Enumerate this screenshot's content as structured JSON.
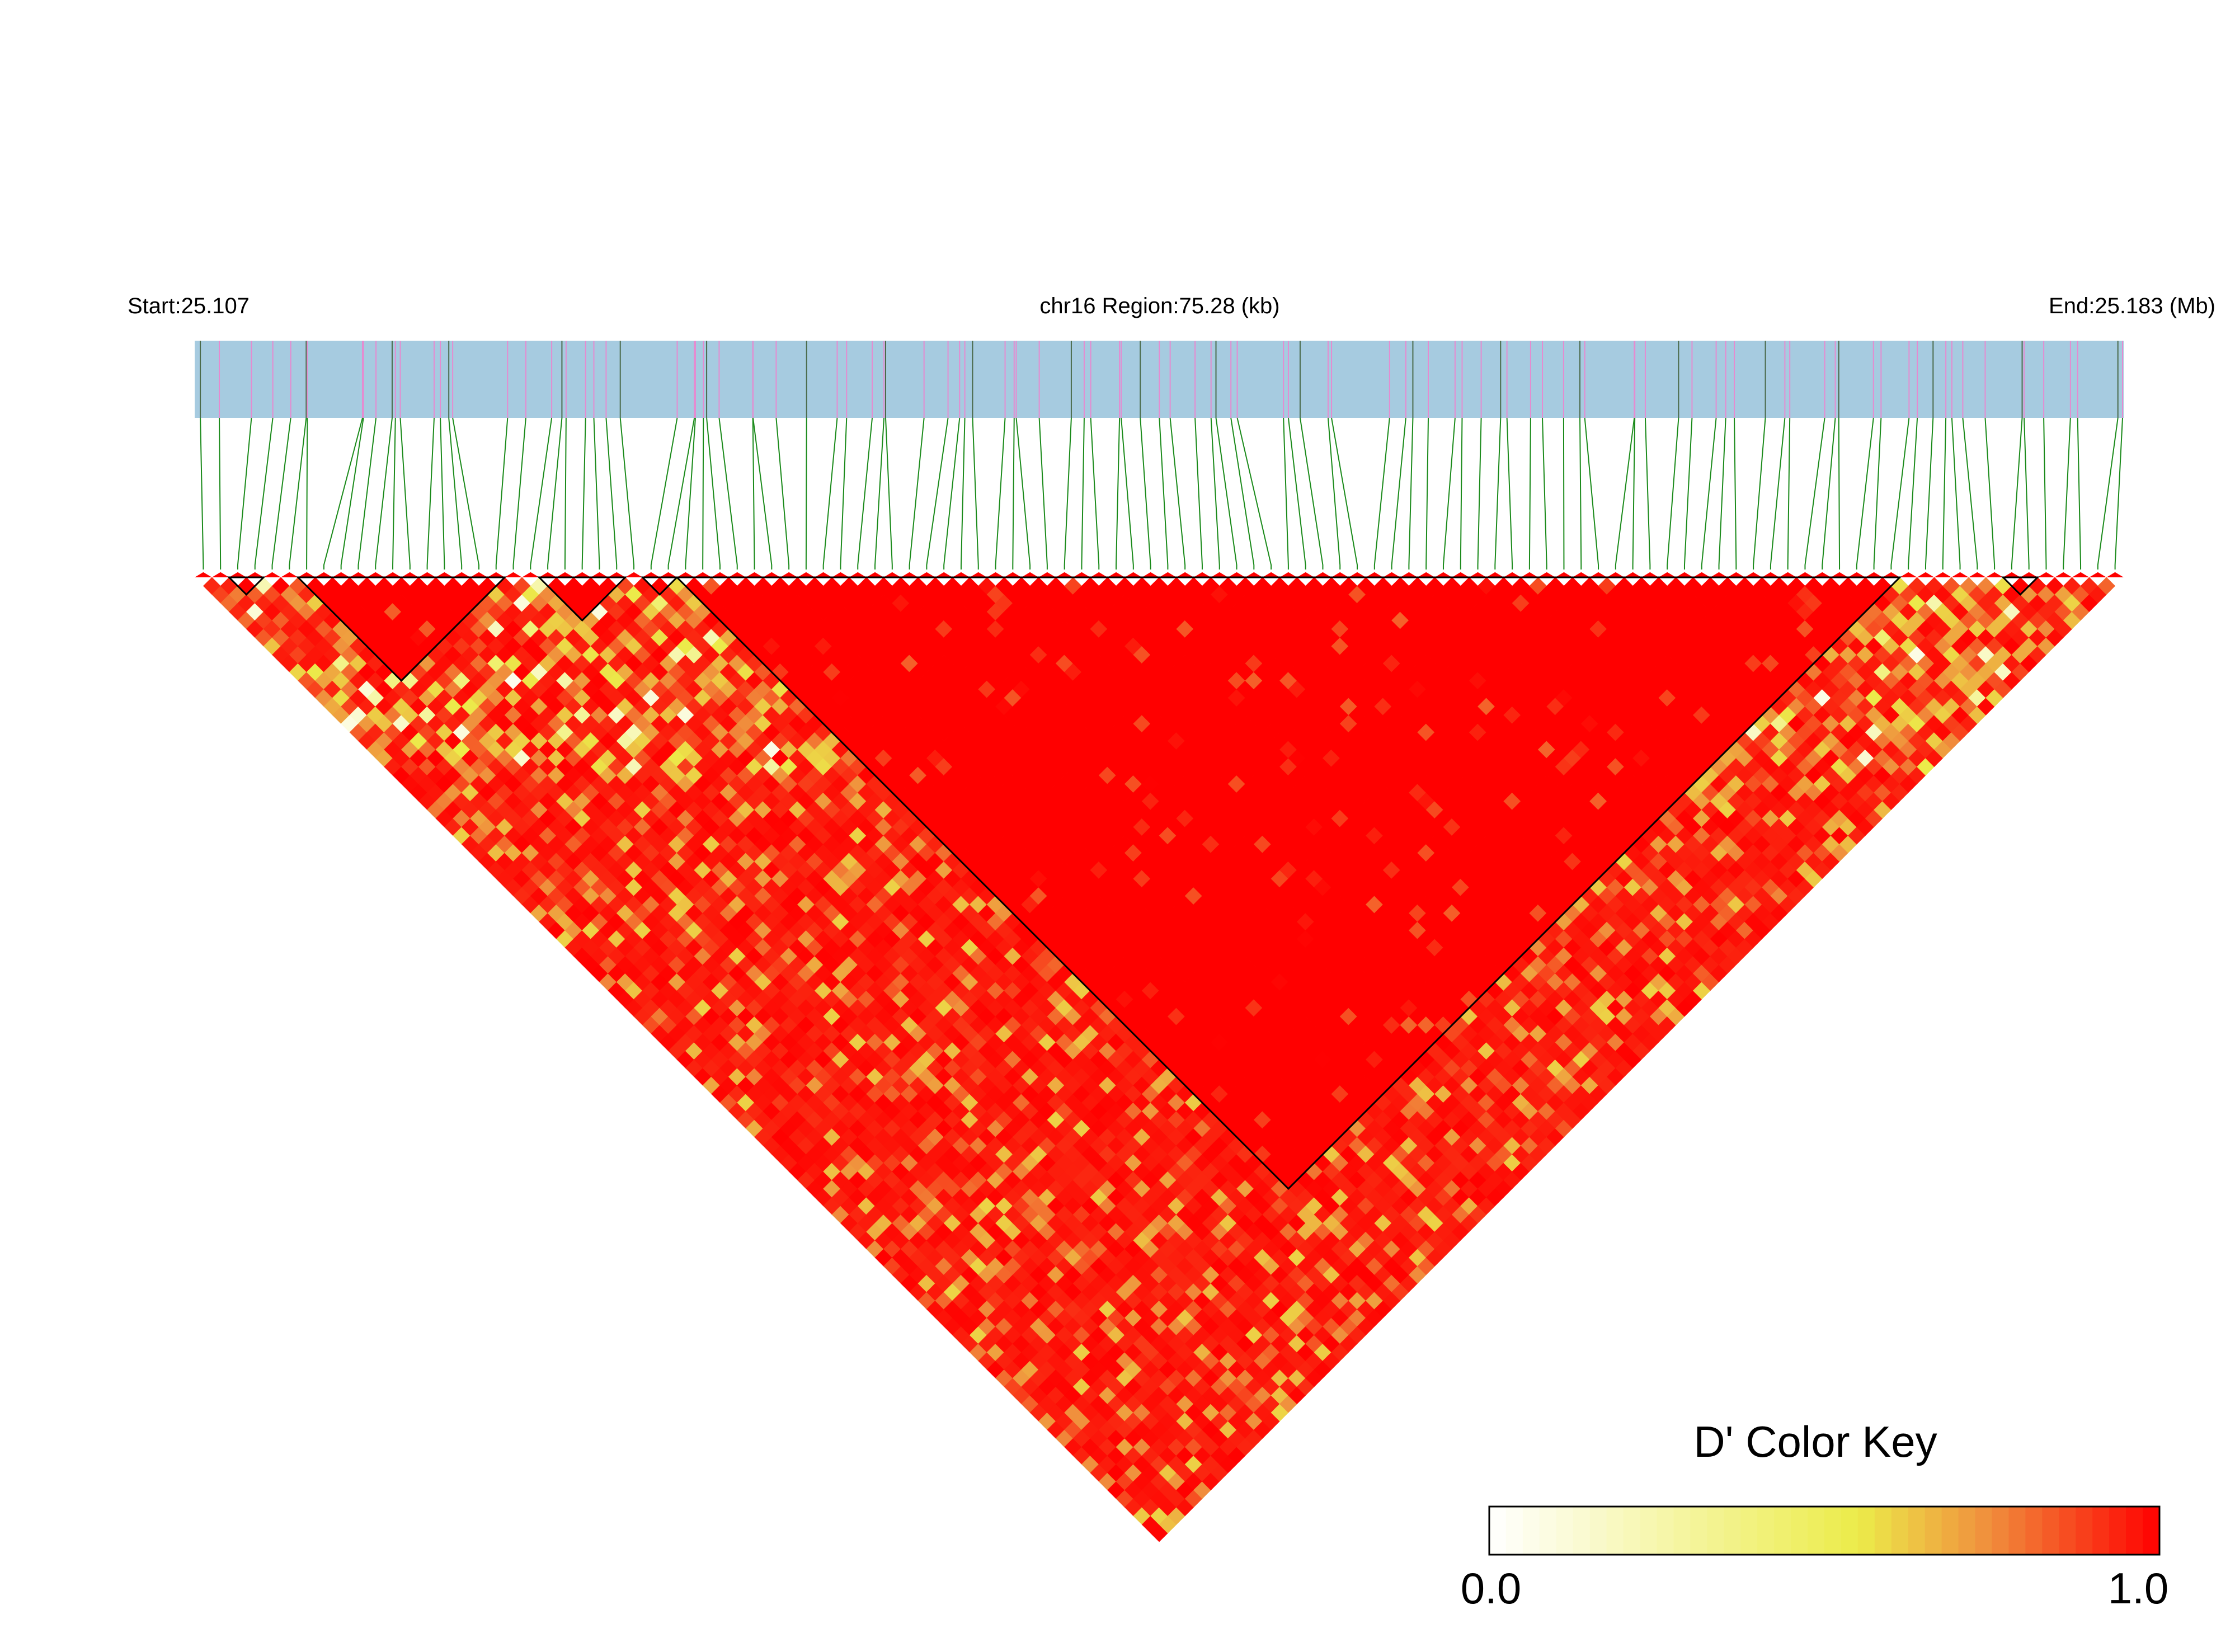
{
  "header": {
    "start_label": "Start:25.107",
    "region_label": "chr16 Region:75.28 (kb)",
    "end_label": "End:25.183 (Mb)"
  },
  "chart_data": {
    "type": "heatmap",
    "subtype": "LD block plot (triangular)",
    "chromosome": "chr16",
    "start_mb": 25.107,
    "end_mb": 25.183,
    "region_kb": 75.28,
    "n_snps": 112,
    "metric": "D'",
    "value_range": [
      0.0,
      1.0
    ],
    "blocks": [
      {
        "from_snp": 3,
        "to_snp": 4
      },
      {
        "from_snp": 7,
        "to_snp": 18
      },
      {
        "from_snp": 21,
        "to_snp": 25
      },
      {
        "from_snp": 27,
        "to_snp": 28
      },
      {
        "from_snp": 29,
        "to_snp": 99
      },
      {
        "from_snp": 106,
        "to_snp": 107
      }
    ],
    "legend": {
      "title": "D' Color Key",
      "min_label": "0.0",
      "max_label": "1.0",
      "placement": "bottom-right"
    },
    "colors": {
      "track_fill": "#a6cbe0",
      "marker_pink": "#e58bd0",
      "marker_dark": "#4a6a4a",
      "connector": "#1a8a1a",
      "low": "#ffffff",
      "mid": "#ecec4a",
      "high": "#ff0000",
      "block_outline": "#000000"
    }
  }
}
